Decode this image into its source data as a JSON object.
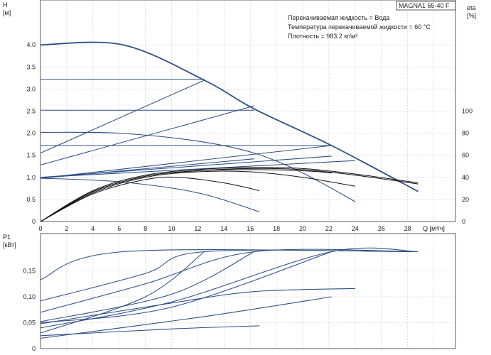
{
  "chart_data": [
    {
      "type": "line",
      "title": "MAGNA1 65-40 F",
      "notes": [
        "Перекачиваемая жидкость = Вода",
        "Температура перекачиваемой жидкости = 60 °C",
        "Плотность = 983.2 кг/м³"
      ],
      "ylabel_left": "H",
      "ylabel_left_unit": "[м]",
      "ylabel_right": "eta",
      "ylabel_right_unit": "[%]",
      "xlabel": "Q [м³/ч]",
      "xlim": [
        0,
        31
      ],
      "ylim": [
        0,
        4.0
      ],
      "y2lim": [
        0,
        129
      ],
      "x_ticks": [
        "0",
        "2",
        "4",
        "6",
        "8",
        "10",
        "12",
        "14",
        "16",
        "18",
        "20",
        "22",
        "24",
        "26",
        "28"
      ],
      "y_ticks": [
        "0",
        "0.5",
        "1.0",
        "1.5",
        "2.0",
        "2.5",
        "3.0",
        "3.5",
        "4.0"
      ],
      "y2_ticks": [
        "0",
        "20",
        "40",
        "60",
        "80",
        "100"
      ],
      "grid": true,
      "head_series": [
        {
          "x": [
            0,
            6.3,
            12.5,
            16.3,
            22.2,
            28.8
          ],
          "y": [
            4.0,
            4.0,
            3.2,
            2.55,
            1.72,
            0.68
          ]
        },
        {
          "x": [
            0,
            12.5
          ],
          "y": [
            3.22,
            3.22
          ]
        },
        {
          "x": [
            0,
            16.3
          ],
          "y": [
            2.52,
            2.52
          ]
        },
        {
          "x": [
            0,
            22.2
          ],
          "y": [
            1.72,
            1.72
          ]
        },
        {
          "x": [
            0,
            6,
            12,
            16.3,
            20,
            24
          ],
          "y": [
            2.02,
            2.0,
            1.82,
            1.55,
            1.1,
            0.45
          ]
        },
        {
          "x": [
            0,
            6,
            12,
            16.7
          ],
          "y": [
            0.98,
            0.9,
            0.65,
            0.22
          ]
        },
        {
          "x": [
            0,
            12.5
          ],
          "y": [
            1.55,
            3.2
          ]
        },
        {
          "x": [
            0,
            16.3
          ],
          "y": [
            1.28,
            2.62
          ]
        },
        {
          "x": [
            0,
            22.2
          ],
          "y": [
            0.98,
            1.72
          ]
        },
        {
          "x": [
            0,
            16.3
          ],
          "y": [
            0.98,
            1.42
          ]
        },
        {
          "x": [
            0,
            24
          ],
          "y": [
            1.0,
            1.38
          ]
        },
        {
          "x": [
            0,
            22.2
          ],
          "y": [
            1.0,
            1.48
          ]
        }
      ],
      "efficiency_series": [
        {
          "x": [
            0,
            4,
            8,
            12,
            16,
            20,
            24,
            28.8
          ],
          "y": [
            0,
            28,
            42,
            47,
            49,
            48,
            43,
            35
          ]
        },
        {
          "x": [
            0,
            4,
            8,
            12,
            16,
            20,
            24,
            28.8
          ],
          "y": [
            0,
            27,
            41,
            46,
            48,
            47,
            42,
            34
          ]
        },
        {
          "x": [
            0,
            4,
            8,
            12,
            16,
            20,
            22.2
          ],
          "y": [
            0,
            27,
            41,
            46,
            47,
            46,
            44
          ]
        },
        {
          "x": [
            0,
            4,
            8,
            12,
            16,
            20,
            24
          ],
          "y": [
            0,
            26,
            40,
            45,
            45,
            40,
            32
          ]
        },
        {
          "x": [
            0,
            4,
            8,
            10.5,
            14,
            16.7
          ],
          "y": [
            0,
            25,
            38,
            40,
            35,
            28
          ]
        }
      ]
    },
    {
      "type": "line",
      "ylabel": "P1",
      "ylabel_unit": "[кВт]",
      "xlim": [
        0,
        31
      ],
      "ylim": [
        0,
        0.2
      ],
      "y_ticks": [
        "0",
        "0,05",
        "0,10",
        "0,15"
      ],
      "grid": true,
      "series": [
        {
          "x": [
            0,
            6.3,
            28.8
          ],
          "y": [
            0.133,
            0.187,
            0.187
          ]
        },
        {
          "x": [
            0,
            8,
            12.5,
            28.8
          ],
          "y": [
            0.092,
            0.145,
            0.187,
            0.187
          ]
        },
        {
          "x": [
            0,
            8,
            16.3,
            28.8
          ],
          "y": [
            0.07,
            0.125,
            0.187,
            0.187
          ]
        },
        {
          "x": [
            0,
            10,
            16.3
          ],
          "y": [
            0.052,
            0.105,
            0.187
          ]
        },
        {
          "x": [
            0,
            10,
            22.2,
            28.8
          ],
          "y": [
            0.04,
            0.09,
            0.187,
            0.187
          ]
        },
        {
          "x": [
            0,
            10,
            22.2
          ],
          "y": [
            0.05,
            0.08,
            0.187
          ]
        },
        {
          "x": [
            0,
            8,
            12.5
          ],
          "y": [
            0.03,
            0.1,
            0.187
          ]
        },
        {
          "x": [
            0,
            10,
            16.3,
            24
          ],
          "y": [
            0.048,
            0.088,
            0.11,
            0.116
          ]
        },
        {
          "x": [
            0,
            10,
            16.7
          ],
          "y": [
            0.025,
            0.038,
            0.044
          ]
        },
        {
          "x": [
            0,
            12,
            22.2
          ],
          "y": [
            0.02,
            0.06,
            0.1
          ]
        }
      ]
    }
  ]
}
